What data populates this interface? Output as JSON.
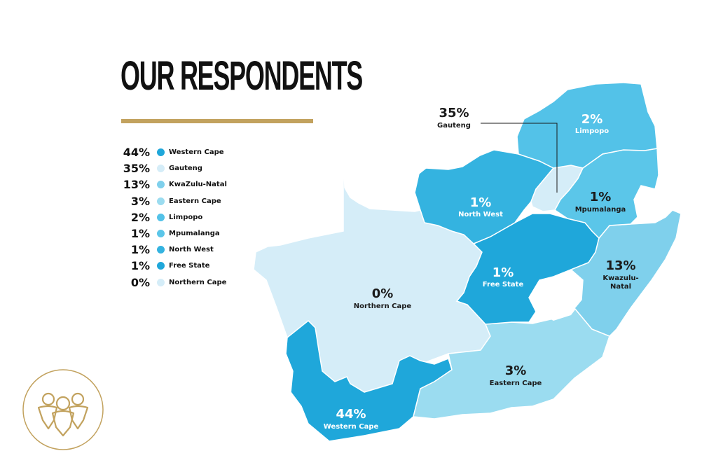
{
  "title": "OUR RESPONDENTS",
  "colors": {
    "accent_gold": "#c2a25e",
    "western_cape": "#1fa7da",
    "gauteng": "#d5edf8",
    "kwazulu_natal": "#7fd0ec",
    "eastern_cape": "#9bdcf0",
    "limpopo": "#53c2e8",
    "mpumalanga": "#5bc6e9",
    "north_west": "#34b3e0",
    "free_state": "#1fa7da",
    "northern_cape": "#d5edf8"
  },
  "legend": [
    {
      "pct": "44%",
      "label": "Western Cape"
    },
    {
      "pct": "35%",
      "label": "Gauteng"
    },
    {
      "pct": "13%",
      "label": "KwaZulu-Natal"
    },
    {
      "pct": "3%",
      "label": "Eastern Cape"
    },
    {
      "pct": "2%",
      "label": "Limpopo"
    },
    {
      "pct": "1%",
      "label": "Mpumalanga"
    },
    {
      "pct": "1%",
      "label": "North West"
    },
    {
      "pct": "1%",
      "label": "Free State"
    },
    {
      "pct": "0%",
      "label": "Northern Cape"
    }
  ],
  "map_labels": {
    "western_cape": {
      "pct": "44%",
      "name": "Western Cape"
    },
    "gauteng": {
      "pct": "35%",
      "name": "Gauteng"
    },
    "kwazulu_natal": {
      "pct": "13%",
      "name_line1": "Kwazulu-",
      "name_line2": "Natal"
    },
    "eastern_cape": {
      "pct": "3%",
      "name": "Eastern Cape"
    },
    "limpopo": {
      "pct": "2%",
      "name": "Limpopo"
    },
    "mpumalanga": {
      "pct": "1%",
      "name": "Mpumalanga"
    },
    "north_west": {
      "pct": "1%",
      "name": "North West"
    },
    "free_state": {
      "pct": "1%",
      "name": "Free State"
    },
    "northern_cape": {
      "pct": "0%",
      "name": "Northern Cape"
    }
  },
  "badge_icon": "people-group-icon"
}
